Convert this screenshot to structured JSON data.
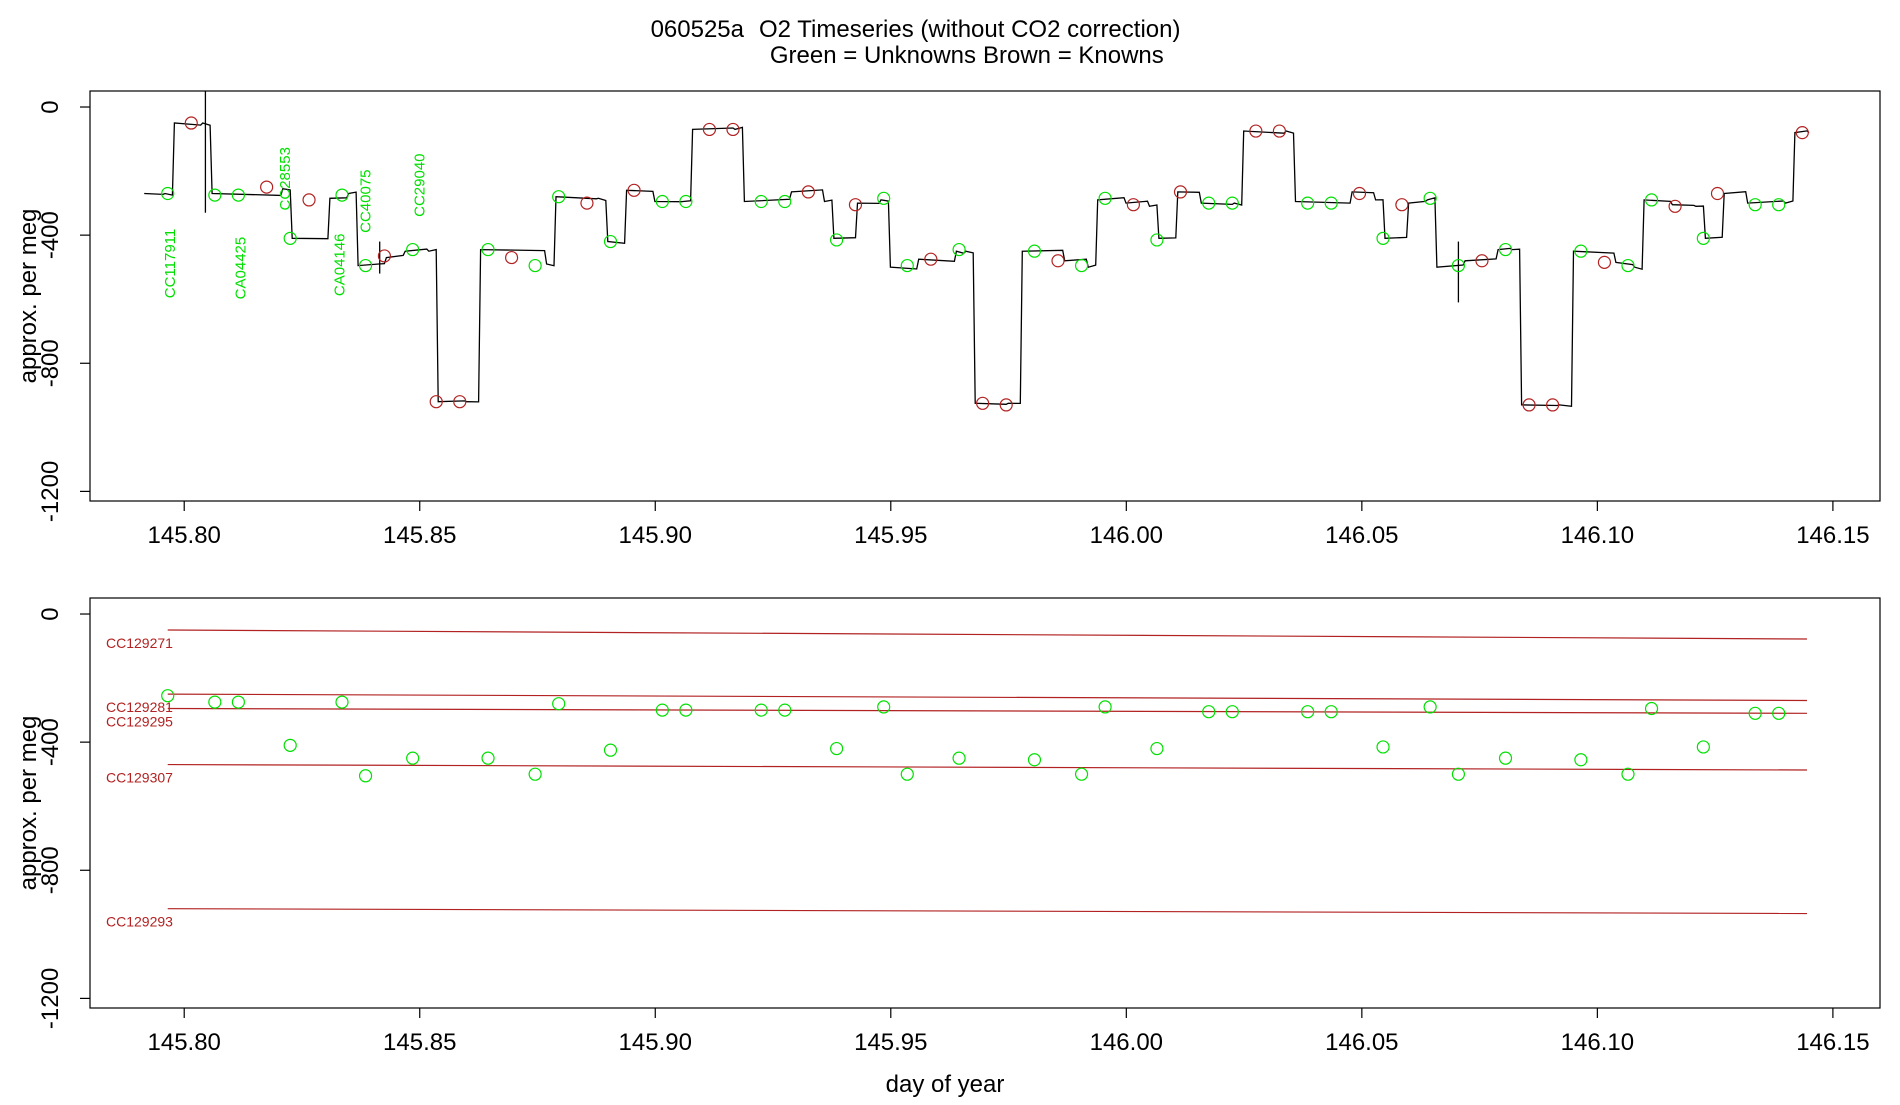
{
  "title": {
    "id": "060525a",
    "text": "O2 Timeseries (without CO2 correction)",
    "legend_unknowns": "Green = Unknowns",
    "legend_knowns": "Brown = Knowns"
  },
  "colors": {
    "unknown": "#00e000",
    "known": "#b22222",
    "trace": "#000000"
  },
  "chart_data": [
    {
      "type": "line",
      "ylabel": "approx. per meg",
      "xlim": [
        145.78,
        146.16
      ],
      "ylim": [
        -1230,
        50
      ],
      "xticks": [
        145.8,
        145.85,
        145.9,
        145.95,
        146.0,
        146.05,
        146.1,
        146.15
      ],
      "xtick_labels": [
        "145.80",
        "145.85",
        "145.90",
        "145.95",
        "146.00",
        "146.05",
        "146.10",
        "146.15"
      ],
      "yticks": [
        0,
        -400,
        -800,
        -1200
      ],
      "ytick_labels": [
        "0",
        "-400",
        "-800",
        "-1200"
      ],
      "trace_steps": [
        [
          145.7915,
          -270
        ],
        [
          145.7955,
          -270
        ],
        [
          145.7975,
          -50
        ],
        [
          145.8035,
          -50
        ],
        [
          145.8055,
          -270
        ],
        [
          145.8205,
          -255
        ],
        [
          145.8225,
          -410
        ],
        [
          145.8305,
          -285
        ],
        [
          145.8345,
          -270
        ],
        [
          145.8365,
          -495
        ],
        [
          145.8425,
          -470
        ],
        [
          145.8465,
          -450
        ],
        [
          145.8515,
          -450
        ],
        [
          145.8535,
          -920
        ],
        [
          145.8595,
          -920
        ],
        [
          145.8625,
          -445
        ],
        [
          145.8765,
          -490
        ],
        [
          145.8785,
          -280
        ],
        [
          145.8875,
          -285
        ],
        [
          145.8895,
          -420
        ],
        [
          145.8935,
          -260
        ],
        [
          145.8995,
          -295
        ],
        [
          145.9055,
          -295
        ],
        [
          145.9075,
          -70
        ],
        [
          145.9165,
          -70
        ],
        [
          145.9185,
          -295
        ],
        [
          145.9285,
          -265
        ],
        [
          145.9355,
          -295
        ],
        [
          145.9375,
          -410
        ],
        [
          145.9425,
          -300
        ],
        [
          145.9475,
          -290
        ],
        [
          145.9495,
          -500
        ],
        [
          145.9555,
          -475
        ],
        [
          145.9635,
          -450
        ],
        [
          145.9655,
          -450
        ],
        [
          145.9675,
          -925
        ],
        [
          145.9745,
          -925
        ],
        [
          145.9775,
          -450
        ],
        [
          145.9865,
          -480
        ],
        [
          145.9915,
          -500
        ],
        [
          145.9935,
          -290
        ],
        [
          145.9995,
          -300
        ],
        [
          146.0045,
          -310
        ],
        [
          146.0065,
          -410
        ],
        [
          146.0105,
          -265
        ],
        [
          146.0155,
          -300
        ],
        [
          146.0225,
          -300
        ],
        [
          146.0245,
          -75
        ],
        [
          146.0335,
          -75
        ],
        [
          146.0355,
          -295
        ],
        [
          146.0475,
          -265
        ],
        [
          146.0525,
          -290
        ],
        [
          146.0545,
          -410
        ],
        [
          146.0595,
          -300
        ],
        [
          146.0635,
          -290
        ],
        [
          146.0655,
          -500
        ],
        [
          146.0715,
          -480
        ],
        [
          146.0785,
          -445
        ],
        [
          146.0815,
          -445
        ],
        [
          146.0835,
          -930
        ],
        [
          146.0915,
          -930
        ],
        [
          146.0945,
          -450
        ],
        [
          146.1035,
          -485
        ],
        [
          146.1075,
          -500
        ],
        [
          146.1095,
          -290
        ],
        [
          146.1155,
          -305
        ],
        [
          146.1205,
          -310
        ],
        [
          146.1225,
          -410
        ],
        [
          146.1265,
          -270
        ],
        [
          146.1315,
          -300
        ],
        [
          146.1395,
          -300
        ],
        [
          146.1415,
          -80
        ],
        [
          146.1445,
          -80
        ]
      ],
      "unknown_points": [
        [
          145.7965,
          -270
        ],
        [
          145.8065,
          -275
        ],
        [
          145.8115,
          -275
        ],
        [
          145.8225,
          -410
        ],
        [
          145.8335,
          -275
        ],
        [
          145.8385,
          -495
        ],
        [
          145.8485,
          -445
        ],
        [
          145.8645,
          -445
        ],
        [
          145.8745,
          -495
        ],
        [
          145.8795,
          -280
        ],
        [
          145.8905,
          -420
        ],
        [
          145.9015,
          -295
        ],
        [
          145.9065,
          -295
        ],
        [
          145.9225,
          -295
        ],
        [
          145.9275,
          -295
        ],
        [
          145.9385,
          -415
        ],
        [
          145.9485,
          -285
        ],
        [
          145.9535,
          -495
        ],
        [
          145.9645,
          -445
        ],
        [
          145.9805,
          -450
        ],
        [
          145.9905,
          -495
        ],
        [
          145.9955,
          -285
        ],
        [
          146.0065,
          -415
        ],
        [
          146.0175,
          -300
        ],
        [
          146.0225,
          -300
        ],
        [
          146.0385,
          -300
        ],
        [
          146.0435,
          -300
        ],
        [
          146.0545,
          -410
        ],
        [
          146.0645,
          -285
        ],
        [
          146.0705,
          -495
        ],
        [
          146.0805,
          -445
        ],
        [
          146.0965,
          -450
        ],
        [
          146.1065,
          -495
        ],
        [
          146.1115,
          -290
        ],
        [
          146.1225,
          -410
        ],
        [
          146.1335,
          -305
        ],
        [
          146.1385,
          -305
        ]
      ],
      "known_points": [
        [
          145.8015,
          -50
        ],
        [
          145.8175,
          -250
        ],
        [
          145.8265,
          -290
        ],
        [
          145.8425,
          -465
        ],
        [
          145.8535,
          -920
        ],
        [
          145.8585,
          -920
        ],
        [
          145.8695,
          -470
        ],
        [
          145.8855,
          -300
        ],
        [
          145.8955,
          -260
        ],
        [
          145.9115,
          -70
        ],
        [
          145.9165,
          -70
        ],
        [
          145.9325,
          -265
        ],
        [
          145.9425,
          -305
        ],
        [
          145.9585,
          -475
        ],
        [
          145.9695,
          -925
        ],
        [
          145.9745,
          -930
        ],
        [
          145.9855,
          -480
        ],
        [
          146.0015,
          -305
        ],
        [
          146.0115,
          -265
        ],
        [
          146.0275,
          -75
        ],
        [
          146.0325,
          -75
        ],
        [
          146.0495,
          -270
        ],
        [
          146.0585,
          -305
        ],
        [
          146.0755,
          -480
        ],
        [
          146.0855,
          -930
        ],
        [
          146.0905,
          -930
        ],
        [
          146.1015,
          -485
        ],
        [
          146.1165,
          -310
        ],
        [
          146.1255,
          -270
        ],
        [
          146.1435,
          -80
        ]
      ],
      "spikes": [
        [
          145.8045,
          50,
          -330
        ],
        [
          145.8415,
          -420,
          -520
        ],
        [
          146.0705,
          -420,
          -610
        ]
      ],
      "annotations": [
        {
          "text": "CC117911",
          "x": 145.798,
          "y": -380
        },
        {
          "text": "CA04425",
          "x": 145.813,
          "y": -405
        },
        {
          "text": "CC28553",
          "x": 145.8225,
          "y": -125
        },
        {
          "text": "CA04146",
          "x": 145.834,
          "y": -395
        },
        {
          "text": "CC40075",
          "x": 145.8395,
          "y": -195
        },
        {
          "text": "CC29040",
          "x": 145.851,
          "y": -145
        }
      ]
    },
    {
      "type": "scatter",
      "ylabel": "approx. per meg",
      "xlabel": "day of year",
      "xlim": [
        145.78,
        146.16
      ],
      "ylim": [
        -1230,
        50
      ],
      "xticks": [
        145.8,
        145.85,
        145.9,
        145.95,
        146.0,
        146.05,
        146.1,
        146.15
      ],
      "xtick_labels": [
        "145.80",
        "145.85",
        "145.90",
        "145.95",
        "146.00",
        "146.05",
        "146.10",
        "146.15"
      ],
      "yticks": [
        0,
        -400,
        -800,
        -1200
      ],
      "ytick_labels": [
        "0",
        "-400",
        "-800",
        "-1200"
      ],
      "reference_lines": [
        {
          "name": "CC129271",
          "x": [
            145.7965,
            146.1445
          ],
          "y": [
            -50,
            -78
          ]
        },
        {
          "name": "CC129281",
          "x": [
            145.7965,
            146.1445
          ],
          "y": [
            -250,
            -270
          ]
        },
        {
          "name": "CC129295",
          "x": [
            145.7965,
            146.1445
          ],
          "y": [
            -295,
            -310
          ]
        },
        {
          "name": "CC129307",
          "x": [
            145.7965,
            146.1445
          ],
          "y": [
            -470,
            -487
          ]
        },
        {
          "name": "CC129293",
          "x": [
            145.7965,
            146.1445
          ],
          "y": [
            -920,
            -935
          ]
        }
      ],
      "unknown_points": [
        [
          145.7965,
          -255
        ],
        [
          145.8065,
          -275
        ],
        [
          145.8115,
          -275
        ],
        [
          145.8225,
          -410
        ],
        [
          145.8335,
          -275
        ],
        [
          145.8385,
          -505
        ],
        [
          145.8485,
          -450
        ],
        [
          145.8645,
          -450
        ],
        [
          145.8745,
          -500
        ],
        [
          145.8795,
          -280
        ],
        [
          145.8905,
          -425
        ],
        [
          145.9015,
          -300
        ],
        [
          145.9065,
          -300
        ],
        [
          145.9225,
          -300
        ],
        [
          145.9275,
          -300
        ],
        [
          145.9385,
          -420
        ],
        [
          145.9485,
          -290
        ],
        [
          145.9535,
          -500
        ],
        [
          145.9645,
          -450
        ],
        [
          145.9805,
          -455
        ],
        [
          145.9905,
          -500
        ],
        [
          145.9955,
          -290
        ],
        [
          146.0065,
          -420
        ],
        [
          146.0175,
          -305
        ],
        [
          146.0225,
          -305
        ],
        [
          146.0385,
          -305
        ],
        [
          146.0435,
          -305
        ],
        [
          146.0545,
          -415
        ],
        [
          146.0645,
          -290
        ],
        [
          146.0705,
          -500
        ],
        [
          146.0805,
          -450
        ],
        [
          146.0965,
          -455
        ],
        [
          146.1065,
          -500
        ],
        [
          146.1115,
          -295
        ],
        [
          146.1225,
          -415
        ],
        [
          146.1335,
          -310
        ],
        [
          146.1385,
          -310
        ]
      ]
    }
  ]
}
